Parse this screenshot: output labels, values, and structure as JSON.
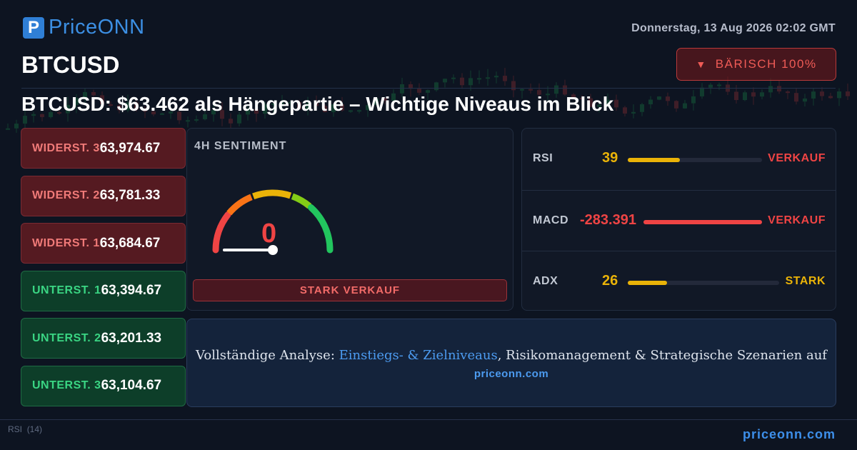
{
  "brand": {
    "badge": "P",
    "name": "PriceONN"
  },
  "header": {
    "datetime": "Donnerstag, 13 Aug 2026 02:02 GMT",
    "symbol": "BTCUSD",
    "sentiment_badge": {
      "arrow": "▼",
      "label": "BÄRISCH 100%"
    },
    "headline": "BTCUSD: $63.462 als Hängepartie – Wichtige Niveaus im Blick"
  },
  "levels": [
    {
      "label": "WIDERST. 3",
      "value": "63,974.67",
      "kind": "res"
    },
    {
      "label": "WIDERST. 2",
      "value": "63,781.33",
      "kind": "res"
    },
    {
      "label": "WIDERST. 1",
      "value": "63,684.67",
      "kind": "res"
    },
    {
      "label": "UNTERST. 1",
      "value": "63,394.67",
      "kind": "sup"
    },
    {
      "label": "UNTERST. 2",
      "value": "63,201.33",
      "kind": "sup"
    },
    {
      "label": "UNTERST. 3",
      "value": "63,104.67",
      "kind": "sup"
    }
  ],
  "sentiment": {
    "title": "4H SENTIMENT",
    "value": "0",
    "level_pct": 0,
    "verdict": "STARK VERKAUF"
  },
  "indicators": [
    {
      "name": "RSI",
      "value": "39",
      "fill": 0.39,
      "signal": "VERKAUF",
      "value_color": "#eab308",
      "bar_color": "#eab308",
      "signal_color": "#ef4444"
    },
    {
      "name": "MACD",
      "value": "-283.391",
      "fill": 1.0,
      "signal": "VERKAUF",
      "value_color": "#ef4444",
      "bar_color": "#ef4444",
      "signal_color": "#ef4444"
    },
    {
      "name": "ADX",
      "value": "26",
      "fill": 0.26,
      "signal": "STARK",
      "value_color": "#eab308",
      "bar_color": "#eab308",
      "signal_color": "#eab308"
    }
  ],
  "promo": {
    "prefix": "Vollständige Analyse: ",
    "highlight": "Einstiegs- & Zielniveaus",
    "suffix": ", Risikomanagement & Strategische Szenarien auf",
    "url": "priceonn.com"
  },
  "footer": {
    "rsi_label": "RSI",
    "rsi_period": "(14)",
    "url": "priceonn.com"
  },
  "colors": {
    "bearish": "#ef4444",
    "bullish": "#22c55e",
    "neutral": "#eab308",
    "accent": "#3d8fea"
  }
}
